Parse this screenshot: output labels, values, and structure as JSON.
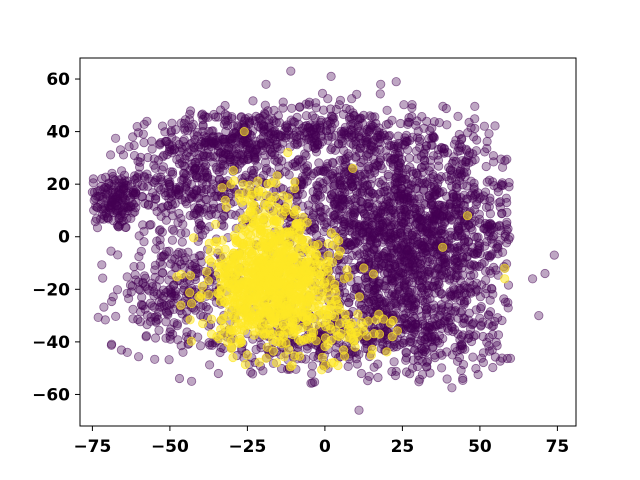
{
  "chart_data": {
    "type": "scatter",
    "title": "",
    "xlabel": "",
    "ylabel": "",
    "xlim": [
      -79,
      81
    ],
    "ylim": [
      -72,
      68
    ],
    "xticks": [
      -75,
      -50,
      -25,
      0,
      25,
      50,
      75
    ],
    "xtick_labels": [
      "−75",
      "−50",
      "−25",
      "0",
      "25",
      "50",
      "75"
    ],
    "yticks": [
      -60,
      -40,
      -20,
      0,
      20,
      40,
      60
    ],
    "ytick_labels": [
      "−60",
      "−40",
      "−20",
      "0",
      "20",
      "40",
      "60"
    ],
    "grid": false,
    "legend": "none",
    "series": [
      {
        "color": "#440154",
        "opacity": 0.35,
        "clusters": [
          {
            "cx": -68,
            "cy": 14,
            "sx": 5,
            "sy": 6,
            "n": 160
          },
          {
            "cx": -42,
            "cy": 20,
            "sx": 11,
            "sy": 11,
            "n": 380
          },
          {
            "cx": -48,
            "cy": -22,
            "sx": 10,
            "sy": 10,
            "n": 260
          },
          {
            "cx": -30,
            "cy": 36,
            "sx": 12,
            "sy": 6,
            "n": 200
          },
          {
            "cx": 15,
            "cy": 15,
            "sx": 17,
            "sy": 17,
            "n": 950
          },
          {
            "cx": 25,
            "cy": -15,
            "sx": 17,
            "sy": 15,
            "n": 750
          },
          {
            "cx": 45,
            "cy": 5,
            "sx": 9,
            "sy": 15,
            "n": 330
          },
          {
            "cx": -10,
            "cy": -40,
            "sx": 15,
            "sy": 6,
            "n": 200
          },
          {
            "cx": 30,
            "cy": -38,
            "sx": 14,
            "sy": 7,
            "n": 230
          },
          {
            "cx": 0,
            "cy": 40,
            "sx": 18,
            "sy": 6,
            "n": 250
          }
        ],
        "outliers": [
          [
            -11,
            63
          ],
          [
            -19,
            58
          ],
          [
            2,
            61
          ],
          [
            23,
            59
          ],
          [
            18,
            58
          ],
          [
            -43,
            -55
          ],
          [
            -20,
            -51
          ],
          [
            11,
            -66
          ],
          [
            74,
            -7
          ],
          [
            71,
            -14
          ],
          [
            69,
            -30
          ],
          [
            67,
            -16
          ],
          [
            58,
            -12
          ]
        ]
      },
      {
        "color": "#fde725",
        "opacity": 0.55,
        "clusters": [
          {
            "cx": -17,
            "cy": -18,
            "sx": 10,
            "sy": 11,
            "n": 900
          },
          {
            "cx": -20,
            "cy": 10,
            "sx": 6,
            "sy": 8,
            "n": 80
          },
          {
            "cx": 5,
            "cy": -35,
            "sx": 8,
            "sy": 5,
            "n": 60
          }
        ],
        "outliers": [
          [
            58,
            -12
          ],
          [
            58,
            -16
          ],
          [
            -25,
            -45
          ],
          [
            9,
            26
          ],
          [
            -26,
            40
          ],
          [
            46,
            8
          ],
          [
            38,
            -4
          ],
          [
            15,
            -45
          ],
          [
            0,
            -49
          ],
          [
            -30,
            -42
          ]
        ]
      }
    ]
  }
}
